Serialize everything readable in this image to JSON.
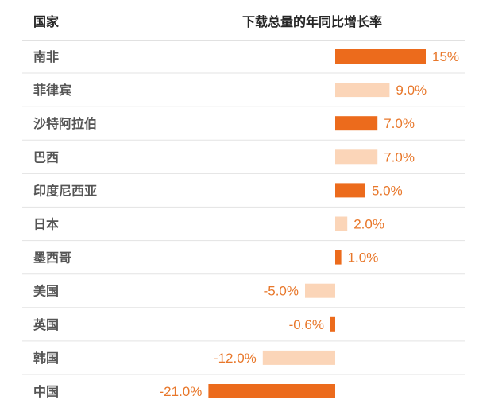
{
  "header": {
    "country_label": "国家",
    "metric_label": "下载总量的年同比增长率"
  },
  "colors": {
    "dark_bar": "#ec6b1c",
    "light_bar": "#fbd5b8",
    "value_text": "#e8772a",
    "row_divider": "#e3e3e3",
    "header_divider": "#cfcfcf"
  },
  "chart_data": {
    "type": "bar",
    "orientation": "horizontal",
    "categories": [
      "南非",
      "菲律宾",
      "沙特阿拉伯",
      "巴西",
      "印度尼西亚",
      "日本",
      "墨西哥",
      "美国",
      "英国",
      "韩国",
      "中国"
    ],
    "values": [
      15,
      9.0,
      7.0,
      7.0,
      5.0,
      2.0,
      1.0,
      -5.0,
      -0.6,
      -12.0,
      -21.0
    ],
    "value_labels": [
      "15%",
      "9.0%",
      "7.0%",
      "7.0%",
      "5.0%",
      "2.0%",
      "1.0%",
      "-5.0%",
      "-0.6%",
      "-12.0%",
      "-21.0%"
    ],
    "bar_shades": [
      "dark",
      "light",
      "dark",
      "light",
      "dark",
      "light",
      "dark",
      "light",
      "dark",
      "light",
      "dark"
    ],
    "xlim": [
      -21,
      15
    ],
    "grid": false,
    "legend": "none"
  }
}
